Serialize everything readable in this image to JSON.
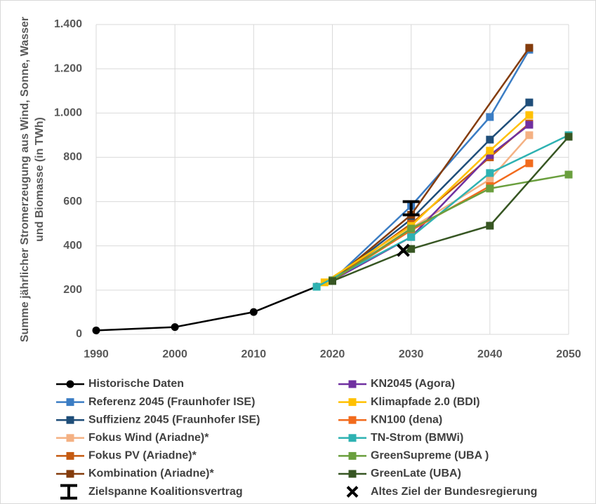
{
  "chart_data": {
    "type": "line",
    "ylabel": [
      "Summe jährlicher Stromerzeugung aus Wind, Sonne, Wasser",
      "und Biomasse (in TWh)"
    ],
    "xlim": [
      1990,
      2050
    ],
    "xticks": [
      1990,
      2000,
      2010,
      2020,
      2030,
      2040,
      2050
    ],
    "ylim": [
      0,
      1400
    ],
    "yticks": [
      0,
      200,
      400,
      600,
      800,
      {
        "value": 1000,
        "label": "1.000"
      },
      {
        "value": 1200,
        "label": "1.200"
      },
      {
        "value": 1400,
        "label": "1.400"
      }
    ],
    "grid": true,
    "series": [
      {
        "name": "Historische Daten",
        "color": "#000000",
        "marker": "circle",
        "x": [
          1990,
          2000,
          2010,
          2018
        ],
        "values": [
          18,
          33,
          101,
          216
        ]
      },
      {
        "name": "Referenz 2045 (Fraunhofer ISE)",
        "color": "#3b7dc4",
        "marker": "square",
        "x": [
          2020,
          2030,
          2040,
          2045
        ],
        "values": [
          244,
          580,
          982,
          1286
        ]
      },
      {
        "name": "Suffizienz 2045 (Fraunhofer ISE)",
        "color": "#1f4e79",
        "marker": "square",
        "x": [
          2020,
          2030,
          2040,
          2045
        ],
        "values": [
          244,
          520,
          880,
          1048
        ]
      },
      {
        "name": "Fokus Wind (Ariadne)*",
        "color": "#f4b183",
        "marker": "square",
        "x": [
          2020,
          2030,
          2040,
          2045
        ],
        "values": [
          244,
          480,
          700,
          900
        ]
      },
      {
        "name": "Fokus PV (Ariadne)*",
        "color": "#c55a11",
        "marker": "square",
        "x": [
          2020,
          2030,
          2040,
          2045
        ],
        "values": [
          244,
          500,
          800,
          953
        ]
      },
      {
        "name": "Kombination (Ariadne)*",
        "color": "#843c0c",
        "marker": "square",
        "x": [
          2020,
          2030,
          2045
        ],
        "values": [
          244,
          540,
          1295
        ]
      },
      {
        "name": "KN2045 (Agora)",
        "color": "#7030a0",
        "marker": "square",
        "x": [
          2020,
          2030,
          2040,
          2045
        ],
        "values": [
          244,
          440,
          810,
          947
        ]
      },
      {
        "name": "Klimapfade 2.0 (BDI)",
        "color": "#ffc000",
        "marker": "square",
        "x": [
          2019,
          2030,
          2040,
          2045
        ],
        "values": [
          235,
          490,
          830,
          991
        ]
      },
      {
        "name": "KN100 (dena)",
        "color": "#f26b1d",
        "marker": "square",
        "x": [
          2020,
          2030,
          2040,
          2045
        ],
        "values": [
          244,
          470,
          670,
          773
        ]
      },
      {
        "name": "TN-Strom (BMWi)",
        "color": "#2eb2b2",
        "marker": "square",
        "x": [
          2018,
          2030,
          2040,
          2050
        ],
        "values": [
          215,
          440,
          729,
          900
        ]
      },
      {
        "name": "GreenSupreme (UBA )",
        "color": "#6a9f3e",
        "marker": "square",
        "x": [
          2020,
          2030,
          2040,
          2050
        ],
        "values": [
          244,
          478,
          659,
          722
        ]
      },
      {
        "name": "GreenLate  (UBA)",
        "color": "#375623",
        "marker": "square",
        "x": [
          2020,
          2030,
          2040,
          2050
        ],
        "values": [
          241,
          386,
          491,
          893
        ]
      }
    ],
    "target_range": {
      "name": "Zielspanne Koalitionsvertrag",
      "color": "#000000",
      "x": 2030,
      "low": 540,
      "high": 600
    },
    "old_target": {
      "name": "Altes Ziel der Bundesregierung",
      "color": "#000000",
      "x": 2029,
      "value": 380
    }
  }
}
